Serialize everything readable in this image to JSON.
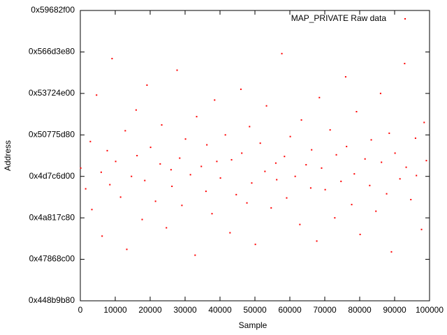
{
  "chart_data": {
    "type": "scatter",
    "xlabel": "Sample",
    "ylabel": "Address",
    "xlim": [
      0,
      100000
    ],
    "xticks": [
      0,
      10000,
      20000,
      30000,
      40000,
      50000,
      60000,
      70000,
      80000,
      90000,
      100000
    ],
    "ylim": [
      1150000000,
      1500000000
    ],
    "yticks": [
      {
        "value": 1150000000,
        "label": "0x448b9b80"
      },
      {
        "value": 1200000000,
        "label": "0x47868c00"
      },
      {
        "value": 1250000000,
        "label": "0x4a817c80"
      },
      {
        "value": 1300000000,
        "label": "0x4d7c6d00"
      },
      {
        "value": 1350000000,
        "label": "0x50775d80"
      },
      {
        "value": 1400000000,
        "label": "0x53724e00"
      },
      {
        "value": 1450000000,
        "label": "0x566d3e80"
      },
      {
        "value": 1500000000,
        "label": "0x59682f00"
      }
    ],
    "legend": "top-right",
    "series": [
      {
        "name": "MAP_PRIVATE Raw data",
        "color": "#ff0000",
        "x": [
          120,
          1530,
          2870,
          3310,
          4650,
          5980,
          6240,
          7710,
          8460,
          9090,
          10120,
          11530,
          12870,
          13310,
          14650,
          15980,
          16240,
          17710,
          18460,
          19090,
          20120,
          21530,
          22870,
          23310,
          24650,
          25980,
          26240,
          27710,
          28460,
          29090,
          30120,
          31530,
          32870,
          33310,
          34650,
          35980,
          36240,
          37710,
          38460,
          39090,
          40120,
          41530,
          42870,
          43310,
          44650,
          45980,
          46240,
          47710,
          48460,
          49090,
          50120,
          51530,
          52870,
          53310,
          54650,
          55980,
          56240,
          57710,
          58460,
          59090,
          60120,
          61530,
          62870,
          63310,
          64650,
          65980,
          66240,
          67710,
          68460,
          69090,
          70120,
          71530,
          72870,
          73310,
          74650,
          75980,
          76240,
          77710,
          78460,
          79090,
          80120,
          81530,
          82870,
          83310,
          84650,
          85980,
          86240,
          87710,
          88460,
          89090,
          90120,
          91530,
          92870,
          93310,
          94650,
          95980,
          96240,
          97710,
          98460,
          99090
        ],
        "values": [
          1310000000,
          1285000000,
          1342000000,
          1260000000,
          1398000000,
          1305000000,
          1228000000,
          1331000000,
          1290000000,
          1442000000,
          1318000000,
          1275000000,
          1355000000,
          1212000000,
          1300000000,
          1380000000,
          1325000000,
          1248000000,
          1295000000,
          1410000000,
          1335000000,
          1270000000,
          1315000000,
          1362000000,
          1238000000,
          1308000000,
          1288000000,
          1428000000,
          1322000000,
          1265000000,
          1345000000,
          1302000000,
          1205000000,
          1372000000,
          1312000000,
          1282000000,
          1338000000,
          1255000000,
          1392000000,
          1318000000,
          1298000000,
          1350000000,
          1232000000,
          1320000000,
          1278000000,
          1405000000,
          1328000000,
          1268000000,
          1360000000,
          1292000000,
          1218000000,
          1340000000,
          1306000000,
          1385000000,
          1262000000,
          1316000000,
          1296000000,
          1448000000,
          1324000000,
          1274000000,
          1348000000,
          1300000000,
          1242000000,
          1368000000,
          1314000000,
          1286000000,
          1332000000,
          1222000000,
          1395000000,
          1310000000,
          1284000000,
          1356000000,
          1250000000,
          1326000000,
          1294000000,
          1420000000,
          1336000000,
          1266000000,
          1303000000,
          1378000000,
          1230000000,
          1321000000,
          1289000000,
          1344000000,
          1258000000,
          1400000000,
          1317000000,
          1279000000,
          1352000000,
          1209000000,
          1328000000,
          1297000000,
          1436000000,
          1311000000,
          1272000000,
          1346000000,
          1301000000,
          1236000000,
          1365000000,
          1319000000
        ]
      }
    ]
  }
}
